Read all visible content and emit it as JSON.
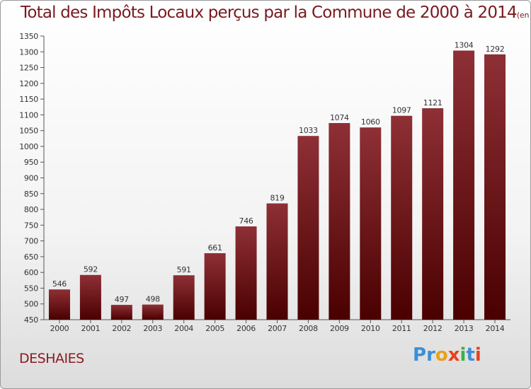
{
  "chart_data": {
    "type": "bar",
    "title": "Total des Impôts Locaux perçus par la Commune de 2000 à 2014",
    "subtitle": "(en milliers d'€)",
    "xlabel": "",
    "ylabel": "",
    "ylim": [
      450,
      1350
    ],
    "ytick_step": 50,
    "categories": [
      "2000",
      "2001",
      "2002",
      "2003",
      "2004",
      "2005",
      "2006",
      "2007",
      "2008",
      "2009",
      "2010",
      "2011",
      "2012",
      "2013",
      "2014"
    ],
    "values": [
      546,
      592,
      497,
      498,
      591,
      661,
      746,
      819,
      1033,
      1074,
      1060,
      1097,
      1121,
      1304,
      1292
    ],
    "grid": false,
    "bar_color_top": "#8e3036",
    "bar_color_bottom": "#4a0000"
  },
  "footer": {
    "commune": "DESHAIES",
    "logo_letters": [
      "P",
      "r",
      "o",
      "x",
      "i",
      "t",
      "i"
    ],
    "logo_colors": [
      "#3c8fd6",
      "#3c8fd6",
      "#e8a21a",
      "#e8421a",
      "#3cb043",
      "#3c8fd6",
      "#e8421a"
    ]
  }
}
